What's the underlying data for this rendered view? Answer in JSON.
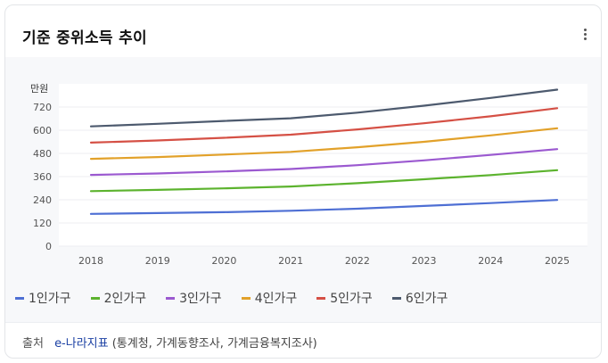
{
  "card": {
    "title": "기준 중위소득 추이"
  },
  "footer": {
    "label": "출처",
    "source": "e-나라지표",
    "detail": "(통계청, 가계동향조사, 가계금융복지조사)"
  },
  "chart_data": {
    "type": "line",
    "ylabel": "만원",
    "xlabel": "",
    "ylim": [
      0,
      840
    ],
    "yticks": [
      0,
      120,
      240,
      360,
      480,
      600,
      720
    ],
    "categories": [
      "2018",
      "2019",
      "2020",
      "2021",
      "2022",
      "2023",
      "2024",
      "2025"
    ],
    "grid": true,
    "legend": "bottom-left",
    "series": [
      {
        "name": "1인가구",
        "color": "#4e6fd4",
        "values": [
          167,
          171,
          176,
          183,
          194,
          208,
          223,
          239
        ]
      },
      {
        "name": "2인가구",
        "color": "#5cb32e",
        "values": [
          285,
          291,
          299,
          309,
          326,
          346,
          368,
          393
        ]
      },
      {
        "name": "3인가구",
        "color": "#9b59d0",
        "values": [
          369,
          376,
          387,
          399,
          419,
          444,
          472,
          502
        ]
      },
      {
        "name": "4인가구",
        "color": "#e2a12a",
        "values": [
          452,
          461,
          474,
          488,
          512,
          540,
          573,
          610
        ]
      },
      {
        "name": "5인가구",
        "color": "#d55045",
        "values": [
          536,
          547,
          561,
          577,
          604,
          636,
          672,
          714
        ]
      },
      {
        "name": "6인가구",
        "color": "#4d5a6e",
        "values": [
          620,
          633,
          648,
          662,
          691,
          727,
          767,
          810
        ]
      }
    ]
  }
}
